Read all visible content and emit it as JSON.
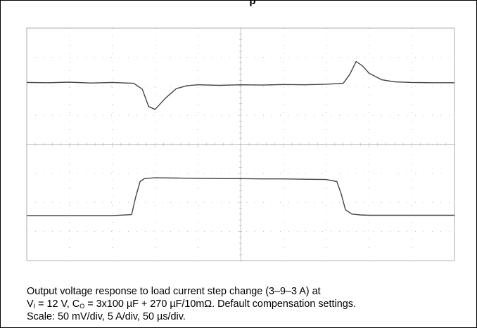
{
  "header": {
    "title_fragment": "p"
  },
  "chart_data": {
    "type": "line",
    "title": "",
    "xlabel": "",
    "ylabel": "",
    "grid": true,
    "grid_divisions": {
      "x": 10,
      "y": 8
    },
    "xlim": [
      0,
      10
    ],
    "ylim": [
      0,
      8
    ],
    "units": "screen divisions (scale: 50 mV/div, 5 A/div, 50 µs/div)",
    "colors": {
      "trace": "#444444",
      "grid": "#aaaaaa",
      "border": "#000000"
    },
    "series": [
      {
        "x": [
          0,
          0.5,
          1.0,
          1.5,
          2.0,
          2.5,
          2.7,
          2.85,
          3.0,
          3.25,
          3.5,
          3.75,
          4.0,
          4.5,
          5.0,
          5.5,
          6.0,
          6.5,
          7.0,
          7.4,
          7.55,
          7.7,
          7.85,
          8.0,
          8.3,
          8.6,
          9.0,
          9.5,
          10.0
        ],
        "y": [
          6.13,
          6.12,
          6.14,
          6.11,
          6.13,
          6.1,
          5.9,
          5.3,
          5.2,
          5.6,
          5.92,
          6.02,
          6.05,
          6.03,
          6.05,
          6.04,
          6.06,
          6.05,
          6.07,
          6.1,
          6.4,
          6.85,
          6.7,
          6.45,
          6.22,
          6.15,
          6.13,
          6.12,
          6.12
        ]
      },
      {
        "x": [
          0,
          0.5,
          1.0,
          1.5,
          2.0,
          2.45,
          2.55,
          2.65,
          2.75,
          3.0,
          3.5,
          4.0,
          4.5,
          5.0,
          5.5,
          6.0,
          6.5,
          7.0,
          7.25,
          7.35,
          7.45,
          7.6,
          7.8,
          8.0,
          8.5,
          9.0,
          9.5,
          10.0
        ],
        "y": [
          1.55,
          1.55,
          1.55,
          1.55,
          1.55,
          1.58,
          2.2,
          2.72,
          2.82,
          2.85,
          2.84,
          2.83,
          2.82,
          2.82,
          2.81,
          2.81,
          2.8,
          2.79,
          2.72,
          2.3,
          1.75,
          1.6,
          1.57,
          1.56,
          1.56,
          1.56,
          1.56,
          1.56
        ]
      }
    ]
  },
  "caption": {
    "line1": "Output voltage response to load current step change (3–9–3 A) at",
    "l2_v": "V",
    "l2_v_sub": "I",
    "l2_mid": " = 12 V, C",
    "l2_c_sub": "O",
    "l2_rest": " = 3x100 µF + 270 µF/10mΩ. Default compensation settings.",
    "line3": "Scale: 50 mV/div, 5 A/div, 50 µs/div."
  }
}
